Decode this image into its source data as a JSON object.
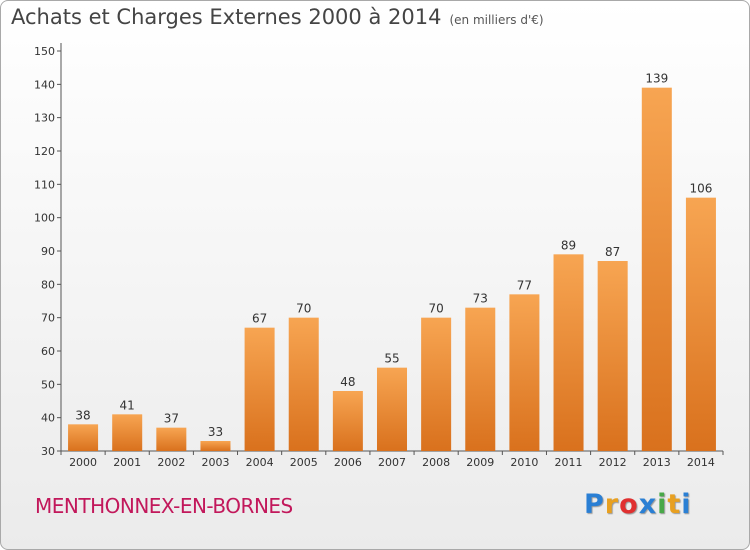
{
  "header": {
    "title": "Achats et Charges Externes 2000 à 2014",
    "unit": "(en milliers d'€)"
  },
  "footer": {
    "place": "MENTHONNEX-EN-BORNES",
    "logo_letters": [
      "P",
      "r",
      "o",
      "x",
      "i",
      "t",
      "i"
    ],
    "logo_colors": [
      "#2a7fd4",
      "#e8a020",
      "#e03030",
      "#2a7fd4",
      "#48a848",
      "#e8a020",
      "#2a7fd4"
    ]
  },
  "colors": {
    "bar_light": "#f7a552",
    "bar_dark": "#d9711d"
  },
  "chart_data": {
    "type": "bar",
    "categories": [
      "2000",
      "2001",
      "2002",
      "2003",
      "2004",
      "2005",
      "2006",
      "2007",
      "2008",
      "2009",
      "2010",
      "2011",
      "2012",
      "2013",
      "2014"
    ],
    "values": [
      38,
      41,
      37,
      33,
      67,
      70,
      48,
      55,
      70,
      73,
      77,
      89,
      87,
      139,
      106
    ],
    "ylim": [
      30,
      150
    ],
    "yticks": [
      30,
      40,
      50,
      60,
      70,
      80,
      90,
      100,
      110,
      120,
      130,
      140,
      150
    ],
    "grid": false,
    "data_labels": true
  }
}
